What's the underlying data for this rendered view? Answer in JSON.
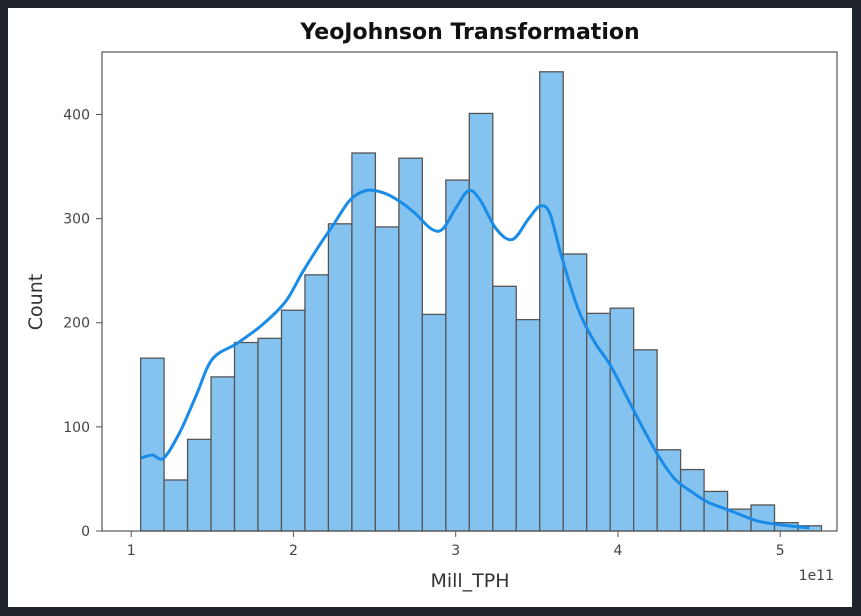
{
  "chart_data": {
    "type": "bar",
    "title": "YeoJohnson Transformation",
    "xlabel": "Mill_TPH",
    "ylabel": "Count",
    "x_offset_label": "1e11",
    "xlim": [
      0.82,
      5.35
    ],
    "ylim": [
      0,
      460
    ],
    "x_ticks": [
      1,
      2,
      3,
      4,
      5
    ],
    "x_tick_labels": [
      "1",
      "2",
      "3",
      "4",
      "5"
    ],
    "y_ticks": [
      0,
      100,
      200,
      300,
      400
    ],
    "y_tick_labels": [
      "0",
      "100",
      "200",
      "300",
      "400"
    ],
    "grid": false,
    "bin_start": 1.058,
    "bin_width": 0.1447,
    "values": [
      166,
      49,
      88,
      148,
      181,
      185,
      212,
      246,
      295,
      363,
      292,
      358,
      208,
      337,
      401,
      235,
      203,
      441,
      266,
      209,
      214,
      174,
      78,
      59,
      38,
      21,
      25,
      8,
      5
    ],
    "kde": {
      "x": [
        1.06,
        1.13,
        1.2,
        1.3,
        1.4,
        1.5,
        1.65,
        1.8,
        1.95,
        2.05,
        2.15,
        2.25,
        2.35,
        2.45,
        2.55,
        2.65,
        2.75,
        2.85,
        2.92,
        3.0,
        3.08,
        3.15,
        3.25,
        3.35,
        3.45,
        3.52,
        3.58,
        3.65,
        3.75,
        3.85,
        3.95,
        4.05,
        4.15,
        4.25,
        4.35,
        4.45,
        4.55,
        4.65,
        4.75,
        4.85,
        4.95,
        5.05,
        5.18
      ],
      "y": [
        70,
        73,
        70,
        95,
        130,
        165,
        180,
        197,
        220,
        247,
        272,
        295,
        318,
        327,
        325,
        317,
        305,
        290,
        290,
        310,
        327,
        318,
        290,
        280,
        300,
        312,
        305,
        265,
        215,
        183,
        160,
        130,
        100,
        72,
        50,
        38,
        28,
        22,
        16,
        10,
        7,
        5,
        3
      ]
    },
    "colors": {
      "bar_fill": "#84c3f0",
      "bar_edge": "#555555",
      "kde_line": "#1a8be6",
      "frame": "#555555"
    }
  }
}
